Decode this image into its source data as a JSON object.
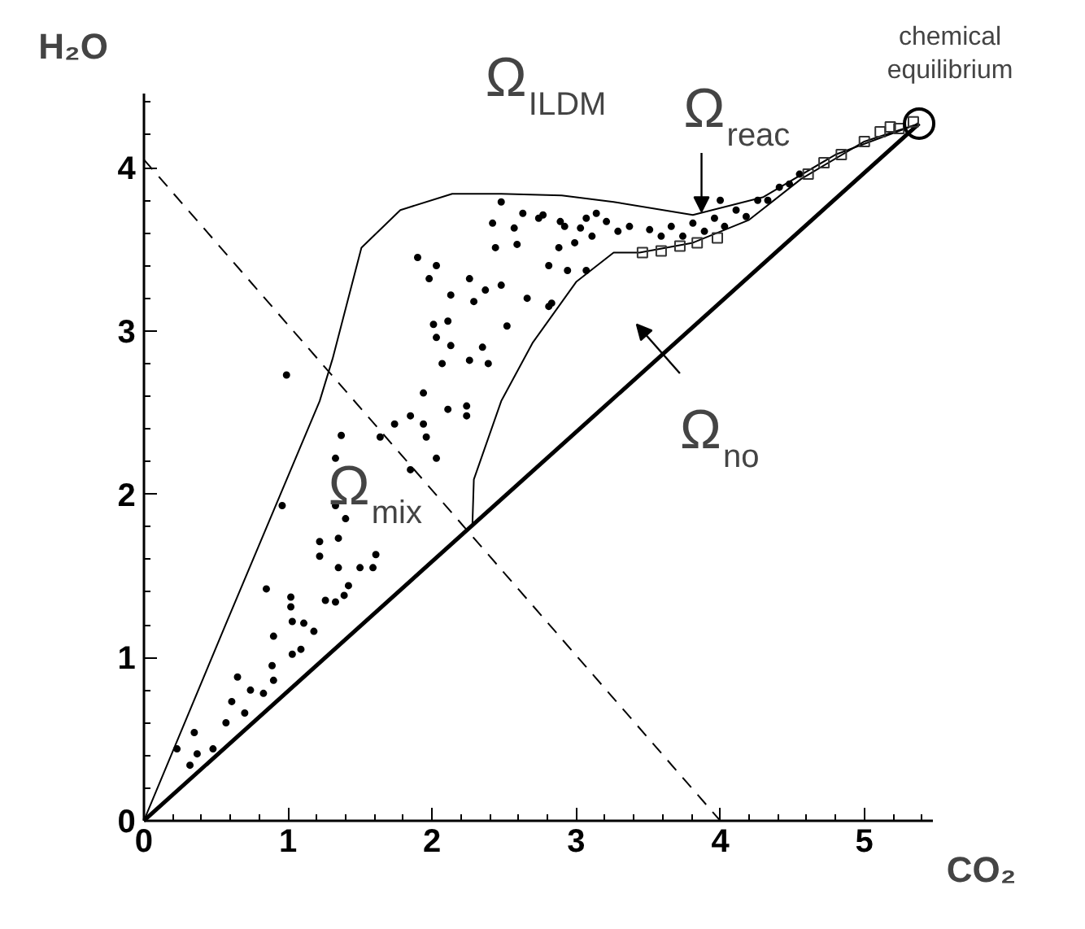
{
  "chart_data": {
    "type": "scatter",
    "xlabel": "CO₂",
    "ylabel": "H₂O",
    "xlim": [
      0,
      5.48
    ],
    "ylim": [
      0,
      4.45
    ],
    "xticks": [
      0,
      1,
      2,
      3,
      4,
      5
    ],
    "yticks": [
      0,
      1,
      2,
      3,
      4
    ],
    "grid": false,
    "series": [
      {
        "type": "line",
        "color": "#000000",
        "line_style": "solid",
        "x": [
          0,
          0.6,
          1.22,
          1.31,
          1.51,
          1.78,
          2.14,
          2.48,
          2.9,
          3.26,
          3.81,
          4.3,
          4.8,
          5.38
        ],
        "values": [
          0,
          1.27,
          2.57,
          2.83,
          3.51,
          3.74,
          3.84,
          3.84,
          3.83,
          3.79,
          3.71,
          3.82,
          4.08,
          4.27
        ]
      },
      {
        "type": "line",
        "color": "#000000",
        "line_style": "solid",
        "x": [
          2.28,
          2.29,
          2.48,
          2.7,
          3.0,
          3.26,
          3.44,
          3.81,
          4.2,
          4.56,
          5.0,
          5.38
        ],
        "values": [
          1.81,
          2.09,
          2.57,
          2.93,
          3.3,
          3.48,
          3.48,
          3.54,
          3.68,
          3.93,
          4.16,
          4.27
        ]
      },
      {
        "type": "line",
        "color": "#000000",
        "line_style": "solid",
        "x": [
          0,
          5.38
        ],
        "values": [
          0,
          4.27
        ]
      },
      {
        "type": "line",
        "color": "#000000",
        "line_style": "dashed",
        "x": [
          0,
          4.0
        ],
        "values": [
          4.05,
          0
        ]
      },
      {
        "color": "#000000",
        "marker": "circle",
        "x": [
          0.35,
          0.23,
          0.37,
          0.48,
          0.32,
          0.57,
          0.61,
          0.65,
          0.7,
          0.74,
          0.83,
          0.85,
          0.9,
          0.89,
          0.9,
          0.96,
          1.02,
          1.02,
          1.03,
          1.03,
          1.09,
          1.11,
          1.18,
          1.22,
          1.22,
          1.26,
          1.33,
          1.35,
          1.33,
          1.35,
          1.39,
          1.4,
          1.42,
          1.5,
          1.59,
          1.61,
          0.99,
          1.33,
          1.37,
          1.64,
          1.74,
          1.85,
          1.94,
          1.96,
          2.03,
          1.85,
          1.94,
          2.11,
          2.24,
          2.24,
          2.13,
          2.35,
          2.39,
          2.07,
          2.03,
          2.01,
          2.11,
          2.26,
          1.9,
          2.03,
          1.98,
          2.13,
          2.26,
          2.37,
          2.48,
          2.52,
          2.66,
          2.83,
          2.29,
          2.44,
          2.59,
          2.74,
          2.89,
          3.03,
          3.14,
          2.99,
          2.81,
          2.94,
          3.07,
          2.42,
          2.57,
          2.48,
          2.63,
          2.77,
          2.92,
          3.07,
          3.21,
          3.37,
          3.51,
          3.66,
          3.81,
          3.96,
          4.11,
          4.26,
          4.41,
          4.55,
          2.88,
          3.11,
          3.29,
          4.0,
          2.81,
          3.59,
          3.74,
          3.89,
          4.03,
          4.18,
          4.33,
          4.48
        ],
        "values": [
          0.54,
          0.44,
          0.41,
          0.44,
          0.34,
          0.6,
          0.73,
          0.88,
          0.66,
          0.8,
          0.78,
          1.42,
          1.13,
          0.95,
          0.86,
          1.93,
          1.37,
          1.31,
          1.22,
          1.02,
          1.05,
          1.21,
          1.16,
          1.71,
          1.62,
          1.35,
          1.34,
          1.73,
          1.93,
          1.55,
          1.38,
          1.85,
          1.44,
          1.55,
          1.55,
          1.63,
          2.73,
          2.22,
          2.36,
          2.35,
          2.43,
          2.48,
          2.62,
          2.35,
          2.22,
          2.15,
          2.43,
          2.52,
          2.54,
          2.48,
          2.91,
          2.9,
          2.8,
          2.8,
          2.96,
          3.04,
          3.06,
          2.82,
          3.45,
          3.4,
          3.32,
          3.22,
          3.32,
          3.25,
          3.28,
          3.03,
          3.2,
          3.17,
          3.18,
          3.51,
          3.53,
          3.69,
          3.67,
          3.63,
          3.72,
          3.54,
          3.4,
          3.37,
          3.37,
          3.66,
          3.63,
          3.79,
          3.72,
          3.71,
          3.64,
          3.69,
          3.67,
          3.64,
          3.62,
          3.64,
          3.66,
          3.69,
          3.74,
          3.8,
          3.88,
          3.96,
          3.51,
          3.58,
          3.61,
          3.8,
          3.15,
          3.58,
          3.58,
          3.61,
          3.64,
          3.7,
          3.8,
          3.9
        ]
      },
      {
        "color": "#333333",
        "marker": "square",
        "x": [
          3.46,
          3.59,
          3.72,
          3.84,
          3.98,
          4.61,
          4.72,
          4.84,
          5.0,
          5.11,
          5.18,
          5.24,
          5.34
        ],
        "values": [
          3.48,
          3.49,
          3.52,
          3.54,
          3.57,
          3.96,
          4.03,
          4.08,
          4.16,
          4.22,
          4.25,
          4.24,
          4.28
        ]
      },
      {
        "type": "bubble",
        "color": "#000000",
        "x": [
          5.38
        ],
        "values": [
          4.27
        ],
        "sizes": [
          1
        ]
      }
    ],
    "annotations": [
      "Ω$_{ILDM}$",
      {
        "text": "Ω$_{reac}$",
        "x": 3.87,
        "y": 3.71
      },
      "Ω$_{no}$",
      "Ω$_{mix}$",
      {
        "text": "chemical\nequilibrium",
        "x": 5.38,
        "y": 4.27
      }
    ]
  }
}
